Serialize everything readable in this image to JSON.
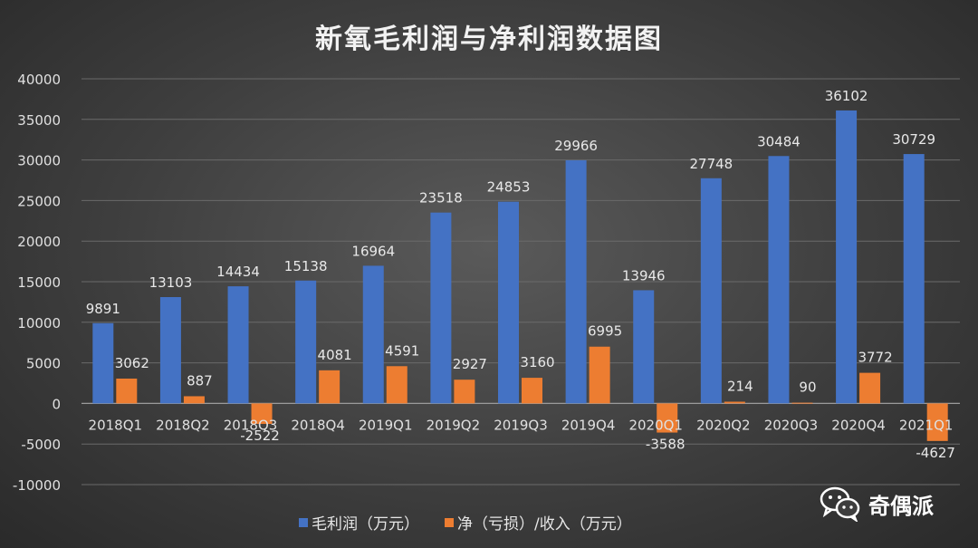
{
  "chart_data": {
    "type": "bar",
    "title": "新氧毛利润与净利润数据图",
    "categories": [
      "2018Q1",
      "2018Q2",
      "2018Q3",
      "2018Q4",
      "2019Q1",
      "2019Q2",
      "2019Q3",
      "2019Q4",
      "2020Q1",
      "2020Q2",
      "2020Q3",
      "2020Q4",
      "2021Q1"
    ],
    "series": [
      {
        "name": "毛利润（万元）",
        "color": "#4472c4",
        "values": [
          9891,
          13103,
          14434,
          15138,
          16964,
          23518,
          24853,
          29966,
          13946,
          27748,
          30484,
          36102,
          30729
        ]
      },
      {
        "name": "净（亏损）/收入（万元）",
        "color": "#ed7d31",
        "values": [
          3062,
          887,
          -2522,
          4081,
          4591,
          2927,
          3160,
          6995,
          -3588,
          214,
          90,
          3772,
          -4627
        ]
      }
    ],
    "ylim": [
      -10000,
      40000
    ],
    "yticks": [
      -10000,
      -5000,
      0,
      5000,
      10000,
      15000,
      20000,
      25000,
      30000,
      35000,
      40000
    ],
    "xlabel": "",
    "ylabel": "",
    "grid": true,
    "legend_position": "bottom"
  },
  "watermark": {
    "text": "奇偶派",
    "icon": "wechat-icon"
  }
}
